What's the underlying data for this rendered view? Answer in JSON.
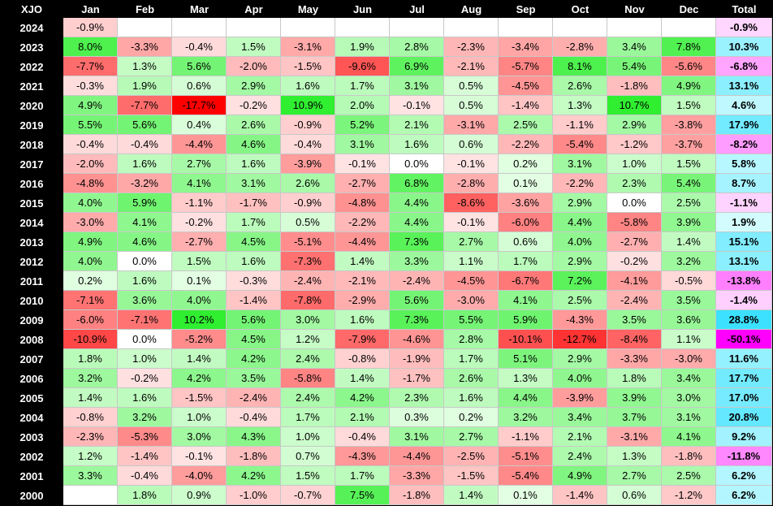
{
  "table": {
    "header": [
      "XJO",
      "Jan",
      "Feb",
      "Mar",
      "Apr",
      "May",
      "Jun",
      "Jul",
      "Aug",
      "Sep",
      "Oct",
      "Nov",
      "Dec",
      "Total"
    ],
    "rows": [
      [
        "2024",
        "-0.9%",
        null,
        null,
        null,
        null,
        null,
        null,
        null,
        null,
        null,
        null,
        null,
        "-0.9%"
      ],
      [
        "2023",
        "8.0%",
        "-3.3%",
        "-0.4%",
        "1.5%",
        "-3.1%",
        "1.9%",
        "2.8%",
        "-2.3%",
        "-3.4%",
        "-2.8%",
        "3.4%",
        "7.8%",
        "10.3%"
      ],
      [
        "2022",
        "-7.7%",
        "1.3%",
        "5.6%",
        "-2.0%",
        "-1.5%",
        "-9.6%",
        "6.9%",
        "-2.1%",
        "-5.7%",
        "8.1%",
        "5.4%",
        "-5.6%",
        "-6.8%"
      ],
      [
        "2021",
        "-0.3%",
        "1.9%",
        "0.6%",
        "2.9%",
        "1.6%",
        "1.7%",
        "3.1%",
        "0.5%",
        "-4.5%",
        "2.6%",
        "-1.8%",
        "4.9%",
        "13.1%"
      ],
      [
        "2020",
        "4.9%",
        "-7.7%",
        "-17.7%",
        "-0.2%",
        "10.9%",
        "2.0%",
        "-0.1%",
        "0.5%",
        "-1.4%",
        "1.3%",
        "10.7%",
        "1.5%",
        "4.6%"
      ],
      [
        "2019",
        "5.5%",
        "5.6%",
        "0.4%",
        "2.6%",
        "-0.9%",
        "5.2%",
        "2.1%",
        "-3.1%",
        "2.5%",
        "-1.1%",
        "2.9%",
        "-3.8%",
        "17.9%"
      ],
      [
        "2018",
        "-0.4%",
        "-0.4%",
        "-4.4%",
        "4.6%",
        "-0.4%",
        "3.1%",
        "1.6%",
        "0.6%",
        "-2.2%",
        "-5.4%",
        "-1.2%",
        "-3.7%",
        "-8.2%"
      ],
      [
        "2017",
        "-2.0%",
        "1.6%",
        "2.7%",
        "1.6%",
        "-3.9%",
        "-0.1%",
        "0.0%",
        "-0.1%",
        "0.2%",
        "3.1%",
        "1.0%",
        "1.5%",
        "5.8%"
      ],
      [
        "2016",
        "-4.8%",
        "-3.2%",
        "4.1%",
        "3.1%",
        "2.6%",
        "-2.7%",
        "6.8%",
        "-2.8%",
        "0.1%",
        "-2.2%",
        "2.3%",
        "5.4%",
        "8.7%"
      ],
      [
        "2015",
        "4.0%",
        "5.9%",
        "-1.1%",
        "-1.7%",
        "-0.9%",
        "-4.8%",
        "4.4%",
        "-8.6%",
        "-3.6%",
        "2.9%",
        "0.0%",
        "2.5%",
        "-1.1%"
      ],
      [
        "2014",
        "-3.0%",
        "4.1%",
        "-0.2%",
        "1.7%",
        "0.5%",
        "-2.2%",
        "4.4%",
        "-0.1%",
        "-6.0%",
        "4.4%",
        "-5.8%",
        "3.9%",
        "1.9%"
      ],
      [
        "2013",
        "4.9%",
        "4.6%",
        "-2.7%",
        "4.5%",
        "-5.1%",
        "-4.4%",
        "7.3%",
        "2.7%",
        "0.6%",
        "4.0%",
        "-2.7%",
        "1.4%",
        "15.1%"
      ],
      [
        "2012",
        "4.0%",
        "0.0%",
        "1.5%",
        "1.6%",
        "-7.3%",
        "1.4%",
        "3.3%",
        "1.1%",
        "1.7%",
        "2.9%",
        "-0.2%",
        "3.2%",
        "13.1%"
      ],
      [
        "2011",
        "0.2%",
        "1.6%",
        "0.1%",
        "-0.3%",
        "-2.4%",
        "-2.1%",
        "-2.4%",
        "-4.5%",
        "-6.7%",
        "7.2%",
        "-4.1%",
        "-0.5%",
        "-13.8%"
      ],
      [
        "2010",
        "-7.1%",
        "3.6%",
        "4.0%",
        "-1.4%",
        "-7.8%",
        "-2.9%",
        "5.6%",
        "-3.0%",
        "4.1%",
        "2.5%",
        "-2.4%",
        "3.5%",
        "-1.4%"
      ],
      [
        "2009",
        "-6.0%",
        "-7.1%",
        "10.2%",
        "5.6%",
        "3.0%",
        "1.6%",
        "7.3%",
        "5.5%",
        "5.9%",
        "-4.3%",
        "3.5%",
        "3.6%",
        "28.8%"
      ],
      [
        "2008",
        "-10.9%",
        "0.0%",
        "-5.2%",
        "4.5%",
        "1.2%",
        "-7.9%",
        "-4.6%",
        "2.8%",
        "-10.1%",
        "-12.7%",
        "-8.4%",
        "1.1%",
        "-50.1%"
      ],
      [
        "2007",
        "1.8%",
        "1.0%",
        "1.4%",
        "4.2%",
        "2.4%",
        "-0.8%",
        "-1.9%",
        "1.7%",
        "5.1%",
        "2.9%",
        "-3.3%",
        "-3.0%",
        "11.6%"
      ],
      [
        "2006",
        "3.2%",
        "-0.2%",
        "4.2%",
        "3.5%",
        "-5.8%",
        "1.4%",
        "-1.7%",
        "2.6%",
        "1.3%",
        "4.0%",
        "1.8%",
        "3.4%",
        "17.7%"
      ],
      [
        "2005",
        "1.4%",
        "1.6%",
        "-1.5%",
        "-2.4%",
        "2.4%",
        "4.2%",
        "2.3%",
        "1.6%",
        "4.4%",
        "-3.9%",
        "3.9%",
        "3.0%",
        "17.0%"
      ],
      [
        "2004",
        "-0.8%",
        "3.2%",
        "1.0%",
        "-0.4%",
        "1.7%",
        "2.1%",
        "0.3%",
        "0.2%",
        "3.2%",
        "3.4%",
        "3.7%",
        "3.1%",
        "20.8%"
      ],
      [
        "2003",
        "-2.3%",
        "-5.3%",
        "3.0%",
        "4.3%",
        "1.0%",
        "-0.4%",
        "3.1%",
        "2.7%",
        "-1.1%",
        "2.1%",
        "-3.1%",
        "4.1%",
        "9.2%"
      ],
      [
        "2002",
        "1.2%",
        "-1.4%",
        "-0.1%",
        "-1.8%",
        "0.7%",
        "-4.3%",
        "-4.4%",
        "-2.5%",
        "-5.1%",
        "2.4%",
        "1.3%",
        "-1.8%",
        "-11.8%"
      ],
      [
        "2001",
        "3.3%",
        "-0.4%",
        "-4.0%",
        "4.2%",
        "1.5%",
        "1.7%",
        "-3.3%",
        "-1.5%",
        "-5.4%",
        "4.9%",
        "2.7%",
        "2.5%",
        "6.2%"
      ],
      [
        "2000",
        null,
        "1.8%",
        "0.9%",
        "-1.0%",
        "-0.7%",
        "7.5%",
        "-1.8%",
        "1.4%",
        "0.1%",
        "-1.4%",
        "0.6%",
        "-1.2%",
        "6.2%"
      ]
    ]
  }
}
